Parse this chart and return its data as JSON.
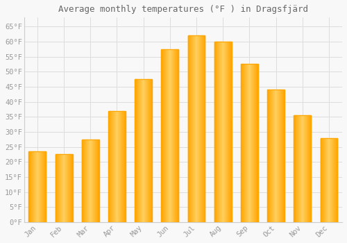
{
  "title": "Average monthly temperatures (°F ) in Dragsfjärd",
  "months": [
    "Jan",
    "Feb",
    "Mar",
    "Apr",
    "May",
    "Jun",
    "Jul",
    "Aug",
    "Sep",
    "Oct",
    "Nov",
    "Dec"
  ],
  "values": [
    23.5,
    22.5,
    27.5,
    37.0,
    47.5,
    57.5,
    62.0,
    60.0,
    52.5,
    44.0,
    35.5,
    28.0
  ],
  "bar_color_left": "#FFA500",
  "bar_color_center": "#FFD060",
  "bar_color_right": "#FFA500",
  "background_color": "#f8f8f8",
  "plot_bg_color": "#f8f8f8",
  "grid_color": "#dddddd",
  "yticks": [
    0,
    5,
    10,
    15,
    20,
    25,
    30,
    35,
    40,
    45,
    50,
    55,
    60,
    65
  ],
  "ylim": [
    0,
    68
  ],
  "tick_label_color": "#999999",
  "title_color": "#666666",
  "spine_color": "#cccccc",
  "font_size_title": 9,
  "font_size_tick": 7.5,
  "bar_width": 0.65
}
